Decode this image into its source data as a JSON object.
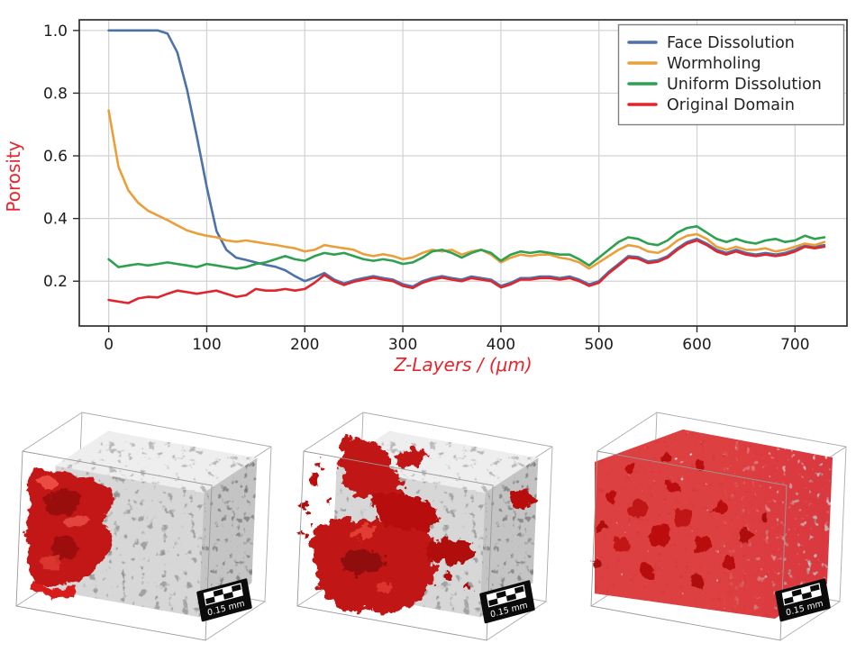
{
  "chart_data": {
    "type": "line",
    "title": "",
    "xlabel": "Z-Layers / (μm)",
    "ylabel": "Porosity",
    "axis_label_color": "#e8252c",
    "grid": true,
    "grid_color": "#d2d2d2",
    "legend_position": "upper right",
    "xlim": [
      -30,
      753
    ],
    "ylim": [
      0.057,
      1.034
    ],
    "xticks": [
      0,
      100,
      200,
      300,
      400,
      500,
      600,
      700
    ],
    "xtick_labels": [
      "0",
      "100",
      "200",
      "300",
      "400",
      "500",
      "600",
      "700"
    ],
    "yticks": [
      0.2,
      0.4,
      0.6,
      0.8,
      1.0
    ],
    "ytick_labels": [
      "0.2",
      "0.4",
      "0.6",
      "0.8",
      "1.0"
    ],
    "x": [
      0,
      10,
      20,
      30,
      40,
      50,
      60,
      70,
      80,
      90,
      100,
      110,
      120,
      130,
      140,
      150,
      160,
      170,
      180,
      190,
      200,
      210,
      220,
      230,
      240,
      250,
      260,
      270,
      280,
      290,
      300,
      310,
      320,
      330,
      340,
      350,
      360,
      370,
      380,
      390,
      400,
      410,
      420,
      430,
      440,
      450,
      460,
      470,
      480,
      490,
      500,
      510,
      520,
      530,
      540,
      550,
      560,
      570,
      580,
      590,
      600,
      610,
      620,
      630,
      640,
      650,
      660,
      670,
      680,
      690,
      700,
      710,
      720,
      730
    ],
    "series": [
      {
        "name": "Face Dissolution",
        "color": "#4d72aa",
        "values": [
          1.0,
          1.0,
          1.0,
          1.0,
          1.0,
          1.0,
          0.99,
          0.93,
          0.81,
          0.66,
          0.5,
          0.36,
          0.3,
          0.275,
          0.268,
          0.26,
          0.252,
          0.246,
          0.235,
          0.216,
          0.2,
          0.212,
          0.226,
          0.205,
          0.193,
          0.203,
          0.21,
          0.216,
          0.21,
          0.205,
          0.19,
          0.183,
          0.2,
          0.21,
          0.216,
          0.21,
          0.205,
          0.215,
          0.21,
          0.205,
          0.185,
          0.195,
          0.21,
          0.21,
          0.215,
          0.215,
          0.21,
          0.215,
          0.205,
          0.19,
          0.2,
          0.23,
          0.255,
          0.28,
          0.277,
          0.263,
          0.267,
          0.28,
          0.305,
          0.325,
          0.335,
          0.32,
          0.3,
          0.29,
          0.3,
          0.29,
          0.285,
          0.29,
          0.285,
          0.29,
          0.3,
          0.315,
          0.31,
          0.315
        ]
      },
      {
        "name": "Wormholing",
        "color": "#e9a03c",
        "values": [
          0.745,
          0.565,
          0.49,
          0.45,
          0.425,
          0.41,
          0.395,
          0.378,
          0.362,
          0.352,
          0.345,
          0.34,
          0.33,
          0.326,
          0.33,
          0.325,
          0.32,
          0.316,
          0.31,
          0.305,
          0.295,
          0.3,
          0.315,
          0.31,
          0.305,
          0.3,
          0.286,
          0.28,
          0.286,
          0.28,
          0.27,
          0.276,
          0.29,
          0.3,
          0.295,
          0.3,
          0.285,
          0.295,
          0.3,
          0.285,
          0.26,
          0.275,
          0.285,
          0.28,
          0.285,
          0.285,
          0.275,
          0.27,
          0.26,
          0.24,
          0.26,
          0.28,
          0.3,
          0.315,
          0.31,
          0.295,
          0.29,
          0.305,
          0.33,
          0.345,
          0.35,
          0.335,
          0.31,
          0.3,
          0.31,
          0.3,
          0.3,
          0.305,
          0.295,
          0.3,
          0.31,
          0.32,
          0.315,
          0.325
        ]
      },
      {
        "name": "Uniform Dissolution",
        "color": "#2ea04f",
        "values": [
          0.27,
          0.245,
          0.25,
          0.255,
          0.25,
          0.255,
          0.26,
          0.255,
          0.25,
          0.245,
          0.255,
          0.25,
          0.245,
          0.24,
          0.245,
          0.255,
          0.26,
          0.27,
          0.28,
          0.27,
          0.265,
          0.28,
          0.29,
          0.285,
          0.29,
          0.28,
          0.27,
          0.265,
          0.27,
          0.265,
          0.255,
          0.26,
          0.275,
          0.295,
          0.3,
          0.29,
          0.275,
          0.29,
          0.3,
          0.29,
          0.265,
          0.285,
          0.295,
          0.29,
          0.295,
          0.29,
          0.285,
          0.285,
          0.27,
          0.25,
          0.275,
          0.3,
          0.325,
          0.34,
          0.335,
          0.32,
          0.315,
          0.33,
          0.355,
          0.37,
          0.375,
          0.355,
          0.335,
          0.325,
          0.335,
          0.325,
          0.32,
          0.33,
          0.335,
          0.325,
          0.33,
          0.345,
          0.335,
          0.34
        ]
      },
      {
        "name": "Original Domain",
        "color": "#e0252f",
        "values": [
          0.14,
          0.135,
          0.13,
          0.145,
          0.15,
          0.148,
          0.16,
          0.17,
          0.165,
          0.16,
          0.165,
          0.17,
          0.16,
          0.15,
          0.155,
          0.175,
          0.17,
          0.17,
          0.175,
          0.17,
          0.175,
          0.195,
          0.22,
          0.2,
          0.188,
          0.198,
          0.205,
          0.211,
          0.205,
          0.2,
          0.185,
          0.178,
          0.195,
          0.205,
          0.211,
          0.205,
          0.2,
          0.21,
          0.205,
          0.2,
          0.18,
          0.19,
          0.205,
          0.205,
          0.21,
          0.21,
          0.205,
          0.21,
          0.2,
          0.185,
          0.195,
          0.225,
          0.25,
          0.275,
          0.272,
          0.258,
          0.262,
          0.275,
          0.3,
          0.32,
          0.33,
          0.315,
          0.295,
          0.285,
          0.295,
          0.285,
          0.28,
          0.285,
          0.28,
          0.285,
          0.295,
          0.31,
          0.305,
          0.31
        ]
      }
    ]
  },
  "renders": {
    "scale_label": "0.15 mm",
    "rock_color": "#8f8f8f",
    "dissolution_color": "#c31414"
  }
}
